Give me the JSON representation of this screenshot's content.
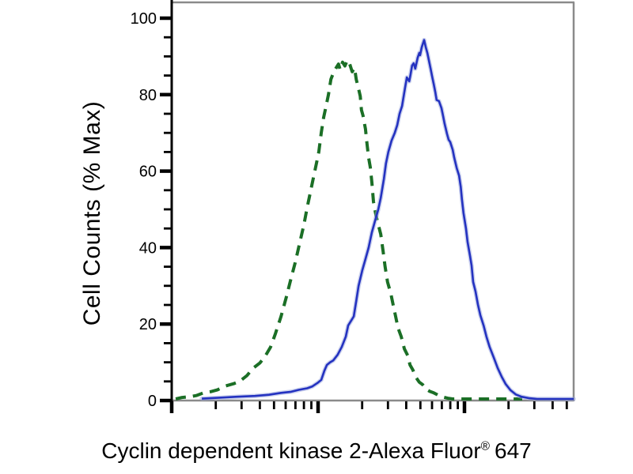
{
  "figure": {
    "kind": "flow-cytometry-overlay-histogram",
    "background": "#ffffff"
  },
  "chart_data": {
    "type": "line",
    "title": "",
    "ylabel": "Cell Counts (% Max)",
    "xlabel_parts": {
      "main": "Cyclin dependent kinase 2-Alexa Fluor",
      "registered": "®",
      "suffix": "647"
    },
    "y_axis": {
      "min": 0,
      "max": 100,
      "major_step": 20,
      "minor_step": 5,
      "tick_labels": [
        "0",
        "20",
        "40",
        "60",
        "80",
        "100"
      ],
      "grid": false
    },
    "x_axis": {
      "scale": "log",
      "tick_labels_shown": false,
      "decade_width_fraction": 0.3642,
      "decades": 3,
      "minor_multiples": [
        2,
        3,
        4,
        5,
        6,
        7,
        8,
        9
      ],
      "grid": false
    },
    "colors": {
      "green": "#1b6f26",
      "blue": "#2432c0",
      "blue_halo": "#9aa6dd",
      "axis": "#000000",
      "frame": "#8a8a8a",
      "text": "#000000"
    },
    "series": [
      {
        "name": "green-dashed",
        "style": "dashed",
        "color": "#1b6f26",
        "points": [
          [
            0.01,
            0.3
          ],
          [
            0.026,
            0.8
          ],
          [
            0.045,
            1.0
          ],
          [
            0.061,
            1.3
          ],
          [
            0.079,
            2.0
          ],
          [
            0.096,
            2.3
          ],
          [
            0.114,
            2.8
          ],
          [
            0.134,
            3.8
          ],
          [
            0.154,
            4.4
          ],
          [
            0.169,
            5.0
          ],
          [
            0.187,
            6.5
          ],
          [
            0.203,
            8.5
          ],
          [
            0.219,
            9.8
          ],
          [
            0.232,
            11.5
          ],
          [
            0.246,
            14.0
          ],
          [
            0.258,
            17.5
          ],
          [
            0.272,
            22.0
          ],
          [
            0.285,
            27.0
          ],
          [
            0.297,
            32.0
          ],
          [
            0.307,
            36.0
          ],
          [
            0.319,
            41.5
          ],
          [
            0.329,
            46.0
          ],
          [
            0.337,
            50.5
          ],
          [
            0.344,
            54.0
          ],
          [
            0.35,
            57.0
          ],
          [
            0.36,
            62.0
          ],
          [
            0.366,
            65.0
          ],
          [
            0.372,
            70.0
          ],
          [
            0.378,
            74.0
          ],
          [
            0.384,
            77.0
          ],
          [
            0.39,
            80.0
          ],
          [
            0.396,
            84.0
          ],
          [
            0.402,
            85.6
          ],
          [
            0.409,
            87.0
          ],
          [
            0.415,
            88.0
          ],
          [
            0.419,
            86.5
          ],
          [
            0.425,
            88.5
          ],
          [
            0.431,
            87.5
          ],
          [
            0.437,
            89.0
          ],
          [
            0.443,
            88.0
          ],
          [
            0.449,
            86.0
          ],
          [
            0.455,
            87.0
          ],
          [
            0.459,
            84.0
          ],
          [
            0.465,
            81.5
          ],
          [
            0.469,
            79.6
          ],
          [
            0.472,
            76.0
          ],
          [
            0.476,
            74.5
          ],
          [
            0.482,
            71.0
          ],
          [
            0.486,
            67.0
          ],
          [
            0.49,
            63.5
          ],
          [
            0.494,
            61.0
          ],
          [
            0.498,
            57.0
          ],
          [
            0.502,
            52.0
          ],
          [
            0.508,
            48.5
          ],
          [
            0.514,
            46.0
          ],
          [
            0.52,
            43.5
          ],
          [
            0.526,
            39.0
          ],
          [
            0.531,
            35.0
          ],
          [
            0.537,
            31.0
          ],
          [
            0.545,
            28.0
          ],
          [
            0.551,
            25.0
          ],
          [
            0.557,
            22.0
          ],
          [
            0.563,
            19.0
          ],
          [
            0.571,
            16.7
          ],
          [
            0.579,
            13.5
          ],
          [
            0.587,
            11.8
          ],
          [
            0.593,
            9.3
          ],
          [
            0.6,
            8.0
          ],
          [
            0.608,
            6.0
          ],
          [
            0.616,
            4.8
          ],
          [
            0.624,
            4.2
          ],
          [
            0.632,
            3.0
          ],
          [
            0.642,
            2.4
          ],
          [
            0.652,
            2.0
          ],
          [
            0.663,
            1.4
          ],
          [
            0.675,
            0.9
          ],
          [
            0.687,
            0.6
          ],
          [
            0.699,
            0.4
          ],
          [
            0.715,
            0.3
          ],
          [
            0.734,
            0.2
          ],
          [
            0.764,
            0.15
          ],
          [
            0.793,
            0.1
          ],
          [
            0.833,
            0.1
          ],
          [
            0.872,
            0.0
          ]
        ]
      },
      {
        "name": "blue-solid",
        "style": "solid",
        "color": "#2432c0",
        "halo_color": "#9aa6dd",
        "points": [
          [
            0.075,
            0.5
          ],
          [
            0.114,
            0.7
          ],
          [
            0.163,
            1.0
          ],
          [
            0.207,
            1.2
          ],
          [
            0.242,
            1.5
          ],
          [
            0.272,
            2.0
          ],
          [
            0.297,
            2.3
          ],
          [
            0.317,
            2.8
          ],
          [
            0.337,
            3.2
          ],
          [
            0.35,
            3.7
          ],
          [
            0.364,
            4.7
          ],
          [
            0.372,
            5.4
          ],
          [
            0.38,
            7.8
          ],
          [
            0.386,
            9.3
          ],
          [
            0.394,
            10.0
          ],
          [
            0.402,
            10.5
          ],
          [
            0.413,
            12.0
          ],
          [
            0.423,
            14.0
          ],
          [
            0.433,
            16.7
          ],
          [
            0.439,
            19.6
          ],
          [
            0.447,
            21.0
          ],
          [
            0.453,
            22.0
          ],
          [
            0.459,
            26.0
          ],
          [
            0.465,
            30.0
          ],
          [
            0.474,
            34.0
          ],
          [
            0.482,
            37.0
          ],
          [
            0.49,
            40.0
          ],
          [
            0.498,
            44.0
          ],
          [
            0.506,
            47.0
          ],
          [
            0.514,
            50.0
          ],
          [
            0.52,
            53.0
          ],
          [
            0.528,
            58.0
          ],
          [
            0.533,
            62.0
          ],
          [
            0.539,
            65.0
          ],
          [
            0.547,
            68.0
          ],
          [
            0.555,
            70.0
          ],
          [
            0.561,
            72.0
          ],
          [
            0.567,
            75.0
          ],
          [
            0.573,
            77.0
          ],
          [
            0.577,
            79.5
          ],
          [
            0.581,
            82.0
          ],
          [
            0.585,
            84.5
          ],
          [
            0.591,
            83.5
          ],
          [
            0.594,
            85.2
          ],
          [
            0.598,
            87.6
          ],
          [
            0.602,
            88.2
          ],
          [
            0.606,
            86.8
          ],
          [
            0.612,
            89.7
          ],
          [
            0.616,
            90.9
          ],
          [
            0.618,
            90.3
          ],
          [
            0.622,
            92.4
          ],
          [
            0.628,
            94.3
          ],
          [
            0.632,
            92.4
          ],
          [
            0.636,
            90.9
          ],
          [
            0.64,
            88.9
          ],
          [
            0.644,
            86.8
          ],
          [
            0.648,
            84.7
          ],
          [
            0.652,
            82.7
          ],
          [
            0.656,
            80.6
          ],
          [
            0.659,
            78.6
          ],
          [
            0.665,
            78.3
          ],
          [
            0.671,
            76.5
          ],
          [
            0.675,
            74.5
          ],
          [
            0.679,
            72.4
          ],
          [
            0.685,
            69.7
          ],
          [
            0.689,
            68.2
          ],
          [
            0.693,
            67.6
          ],
          [
            0.699,
            65.6
          ],
          [
            0.703,
            63.5
          ],
          [
            0.709,
            60.8
          ],
          [
            0.715,
            58.8
          ],
          [
            0.719,
            55.9
          ],
          [
            0.722,
            52.6
          ],
          [
            0.726,
            49.0
          ],
          [
            0.732,
            45.0
          ],
          [
            0.736,
            41.5
          ],
          [
            0.742,
            38.0
          ],
          [
            0.746,
            35.3
          ],
          [
            0.75,
            31.0
          ],
          [
            0.756,
            28.5
          ],
          [
            0.762,
            25.0
          ],
          [
            0.768,
            22.3
          ],
          [
            0.776,
            19.6
          ],
          [
            0.783,
            16.7
          ],
          [
            0.791,
            14.0
          ],
          [
            0.801,
            11.3
          ],
          [
            0.811,
            8.5
          ],
          [
            0.821,
            6.2
          ],
          [
            0.831,
            4.3
          ],
          [
            0.843,
            2.7
          ],
          [
            0.856,
            1.6
          ],
          [
            0.87,
            1.0
          ],
          [
            0.89,
            0.6
          ],
          [
            0.909,
            0.4
          ],
          [
            0.937,
            0.2
          ],
          [
            0.97,
            0.1
          ],
          [
            1.0,
            0.05
          ]
        ]
      }
    ]
  }
}
